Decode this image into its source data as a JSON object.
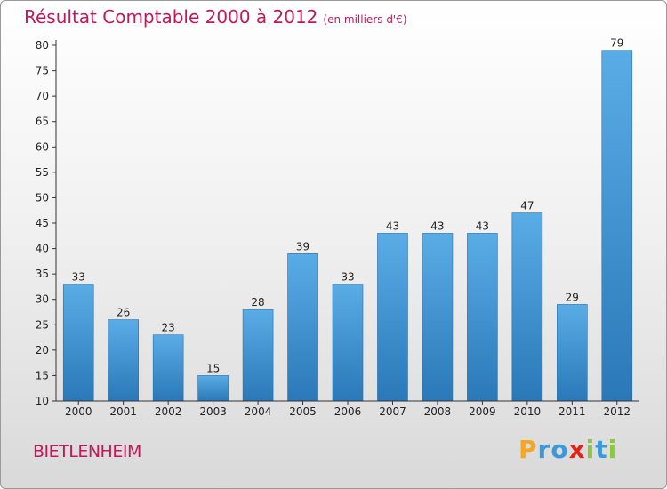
{
  "header": {
    "title": "Résultat Comptable 2000 à 2012",
    "unit": "(en milliers d'€)"
  },
  "commune": "BIETLENHEIM",
  "logo": {
    "text": "Proxiti",
    "letters": [
      {
        "ch": "P",
        "color": "#f5a623"
      },
      {
        "ch": "r",
        "color": "#3a9ad9"
      },
      {
        "ch": "o",
        "color": "#3a9ad9"
      },
      {
        "ch": "x",
        "color": "#e2231a"
      },
      {
        "ch": "i",
        "color": "#8dc63f"
      },
      {
        "ch": "t",
        "color": "#3a9ad9"
      },
      {
        "ch": "i",
        "color": "#8dc63f"
      }
    ]
  },
  "chart_data": {
    "type": "bar",
    "title": "Résultat Comptable 2000 à 2012",
    "categories": [
      "2000",
      "2001",
      "2002",
      "2003",
      "2004",
      "2005",
      "2006",
      "2007",
      "2008",
      "2009",
      "2010",
      "2011",
      "2012"
    ],
    "values": [
      33,
      26,
      23,
      15,
      28,
      39,
      33,
      43,
      43,
      43,
      47,
      29,
      79
    ],
    "ylim": [
      10,
      80
    ],
    "yticks": [
      10,
      15,
      20,
      25,
      30,
      35,
      40,
      45,
      50,
      55,
      60,
      65,
      70,
      75,
      80
    ],
    "grid": false,
    "bar_color_top": "#5aace6",
    "bar_color_bottom": "#2a78b8",
    "title_color": "#c2185b"
  }
}
